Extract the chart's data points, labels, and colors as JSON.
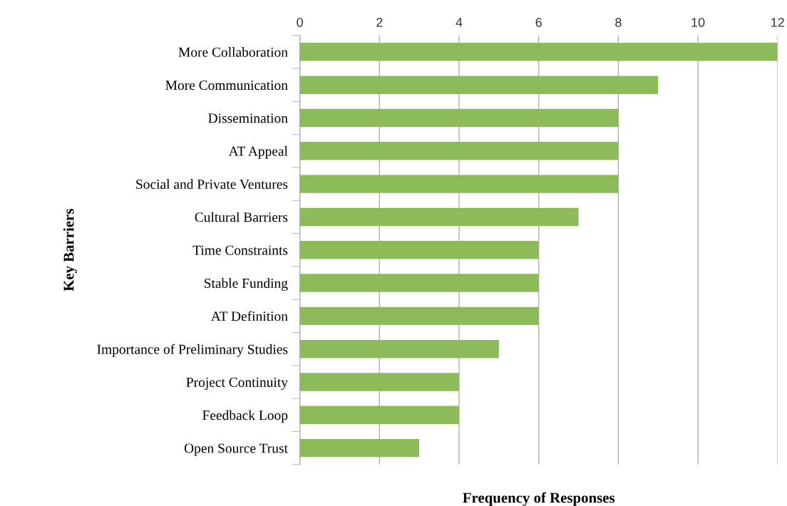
{
  "chart_data": {
    "type": "bar",
    "orientation": "horizontal",
    "categories": [
      "More Collaboration",
      "More Communication",
      "Dissemination",
      "AT Appeal",
      "Social and Private Ventures",
      "Cultural Barriers",
      "Time Constraints",
      "Stable Funding",
      "AT Definition",
      "Importance of Preliminary Studies",
      "Project Continuity",
      "Feedback Loop",
      "Open Source Trust"
    ],
    "values": [
      12,
      9,
      8,
      8,
      8,
      7,
      6,
      6,
      6,
      5,
      4,
      4,
      3
    ],
    "color": "#8dbb5a",
    "xlim": [
      0,
      12
    ],
    "xticks": [
      0,
      2,
      4,
      6,
      8,
      10,
      12
    ],
    "xlabel": "Frequency of Responses",
    "ylabel": "Key Barriers",
    "grid": "x",
    "legend": false
  }
}
